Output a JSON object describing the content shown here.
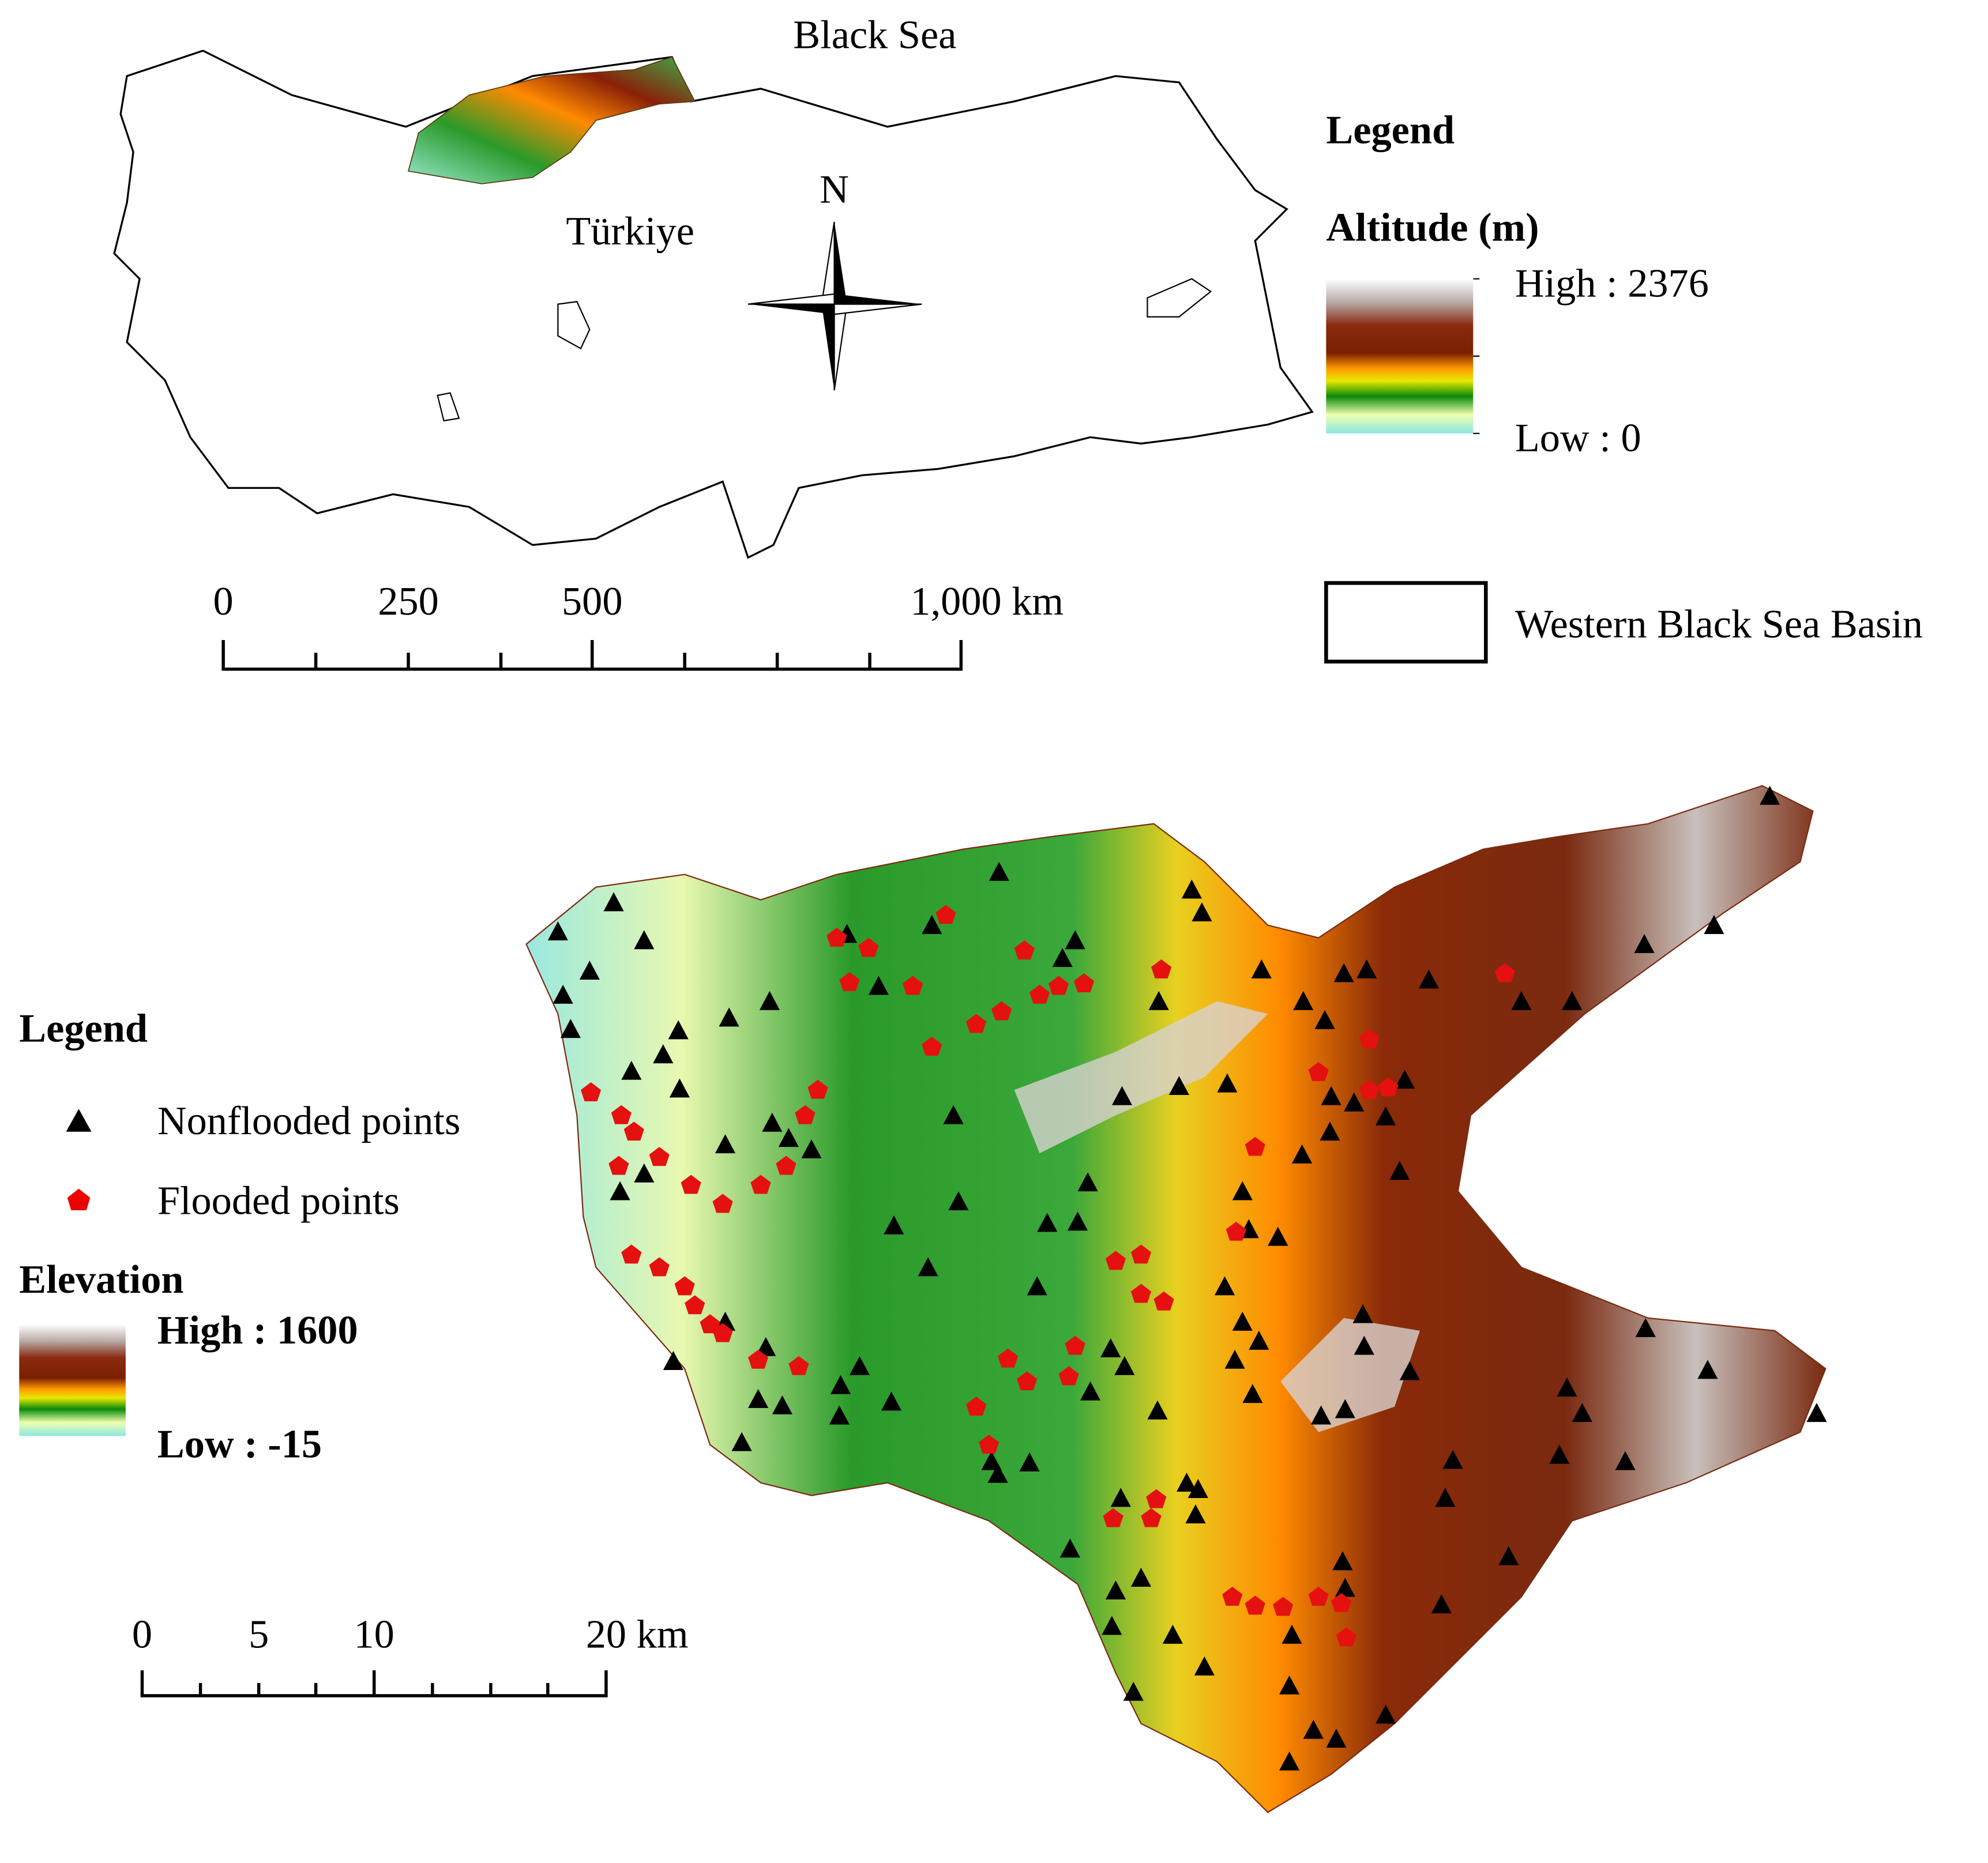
{
  "top_map": {
    "sea_label": "Black Sea",
    "country_label": "Türkiye",
    "north": "N",
    "legend": {
      "title": "Legend",
      "altitude_title": "Altitude (m)",
      "high": "High : 2376",
      "low": "Low : 0",
      "basin": "Western Black Sea Basin"
    },
    "scale": [
      "0",
      "250",
      "500",
      "1,000 km"
    ]
  },
  "bottom_map": {
    "legend": {
      "title": "Legend",
      "nonflooded": "Nonflooded points",
      "flooded": "Flooded points",
      "elevation_title": "Elevation",
      "high": "High : 1600",
      "low": "Low : -15"
    },
    "scale": [
      "0",
      "5",
      "10",
      "20 km"
    ]
  }
}
